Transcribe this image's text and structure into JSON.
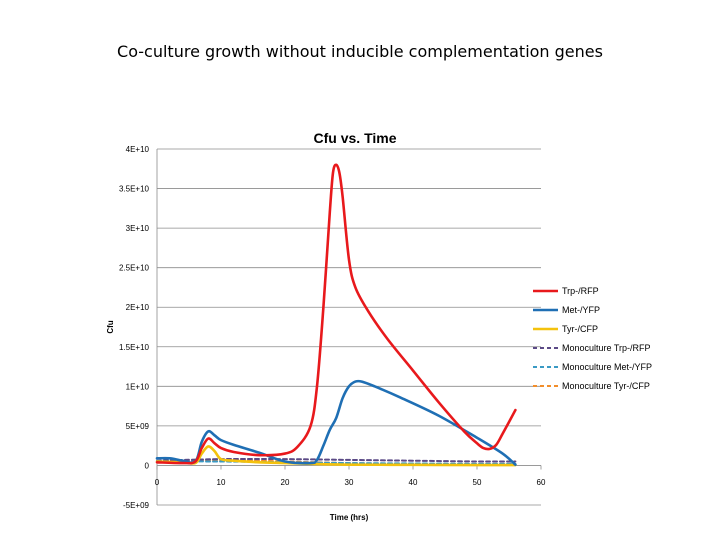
{
  "slide": {
    "title": "Co-culture growth without inducible complementation genes"
  },
  "chart_data": {
    "type": "line",
    "title": "Cfu vs. Time",
    "xlabel": "Time (hrs)",
    "ylabel": "Cfu",
    "xlim": [
      0,
      60
    ],
    "ylim": [
      -5000000000.0,
      40000000000.0
    ],
    "x_ticks": [
      0,
      10,
      20,
      30,
      40,
      50,
      60
    ],
    "y_ticks": [
      -5000000000.0,
      0,
      5000000000.0,
      10000000000.0,
      15000000000.0,
      20000000000.0,
      25000000000.0,
      30000000000.0,
      35000000000.0,
      40000000000.0
    ],
    "x_tick_labels": [
      "0",
      "10",
      "20",
      "30",
      "40",
      "50",
      "60"
    ],
    "y_tick_labels": [
      "-5E+09",
      "0",
      "5E+09",
      "1E+10",
      "1.5E+10",
      "2E+10",
      "2.5E+10",
      "3E+10",
      "3.5E+10",
      "4E+10"
    ],
    "grid": "horizontal",
    "legend_position": "right",
    "series": [
      {
        "name": "Trp-/RFP",
        "color": "#e8191c",
        "style": "solid",
        "x": [
          0,
          4,
          6,
          7,
          8,
          9,
          10,
          12,
          16,
          20,
          22,
          24,
          25,
          26,
          27,
          27.5,
          28,
          28.5,
          29,
          30,
          31,
          33,
          36,
          40,
          44,
          48,
          50,
          51,
          52,
          53,
          54,
          56
        ],
        "y": [
          400000000.0,
          300000000.0,
          500000000.0,
          2200000000.0,
          3400000000.0,
          2800000000.0,
          2200000000.0,
          1700000000.0,
          1300000000.0,
          1500000000.0,
          2400000000.0,
          5000000000.0,
          10000000000.0,
          20000000000.0,
          32000000000.0,
          37000000000.0,
          38000000000.0,
          37000000000.0,
          34000000000.0,
          26000000000.0,
          22500000000.0,
          19500000000.0,
          16000000000.0,
          12000000000.0,
          8000000000.0,
          4300000000.0,
          2800000000.0,
          2200000000.0,
          2100000000.0,
          2600000000.0,
          4000000000.0,
          7000000000.0
        ]
      },
      {
        "name": "Met-/YFP",
        "color": "#1f6fb4",
        "style": "solid",
        "x": [
          0,
          2,
          4,
          6,
          7,
          8,
          9,
          10,
          12,
          16,
          20,
          24,
          25,
          26,
          27,
          28,
          29,
          30,
          31,
          32,
          34,
          38,
          44,
          50,
          54,
          56
        ],
        "y": [
          900000000.0,
          900000000.0,
          600000000.0,
          500000000.0,
          3000000000.0,
          4300000000.0,
          3800000000.0,
          3200000000.0,
          2600000000.0,
          1600000000.0,
          500000000.0,
          300000000.0,
          700000000.0,
          2500000000.0,
          4500000000.0,
          6000000000.0,
          8500000000.0,
          10000000000.0,
          10600000000.0,
          10600000000.0,
          10000000000.0,
          8600000000.0,
          6300000000.0,
          3500000000.0,
          1500000000.0,
          100000000.0
        ]
      },
      {
        "name": "Tyr-/CFP",
        "color": "#f4c20d",
        "style": "solid",
        "x": [
          0,
          4,
          6,
          7,
          8,
          9,
          10,
          12,
          16,
          20,
          24,
          30,
          40,
          50,
          56
        ],
        "y": [
          500000000.0,
          400000000.0,
          300000000.0,
          1500000000.0,
          2400000000.0,
          1800000000.0,
          800000000.0,
          600000000.0,
          400000000.0,
          300000000.0,
          200000000.0,
          100000000.0,
          80000000.0,
          50000000.0,
          50000000.0
        ]
      },
      {
        "name": "Monoculture Trp-/RFP",
        "color": "#5b4a86",
        "style": "dashed",
        "x": [
          0,
          10,
          20,
          30,
          40,
          50,
          56
        ],
        "y": [
          600000000.0,
          800000000.0,
          800000000.0,
          700000000.0,
          600000000.0,
          500000000.0,
          500000000.0
        ]
      },
      {
        "name": "Monoculture Met-/YFP",
        "color": "#3a9ac4",
        "style": "dashed",
        "x": [
          0,
          10,
          20,
          30,
          40,
          50,
          56
        ],
        "y": [
          500000000.0,
          500000000.0,
          400000000.0,
          300000000.0,
          250000000.0,
          200000000.0,
          200000000.0
        ]
      },
      {
        "name": "Monoculture Tyr-/CFP",
        "color": "#f28e2b",
        "style": "dashed",
        "x": [
          0,
          10,
          20,
          30,
          40,
          50,
          56
        ],
        "y": [
          400000000.0,
          700000000.0,
          500000000.0,
          300000000.0,
          200000000.0,
          100000000.0,
          100000000.0
        ]
      }
    ]
  }
}
